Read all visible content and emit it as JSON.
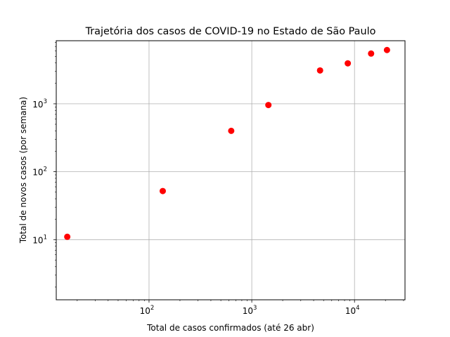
{
  "chart_data": {
    "type": "scatter",
    "title": "Trajetória dos casos de COVID-19 no Estado de São Paulo",
    "xlabel": "Total de casos confirmados (até 26 abr)",
    "ylabel": "Total de novos casos (por semana)",
    "xscale": "log",
    "yscale": "log",
    "xlim": [
      12.5,
      31000
    ],
    "ylim": [
      1.3,
      8500
    ],
    "grid": true,
    "marker_color": "#ff0000",
    "x_ticks": [
      {
        "value": 100,
        "label": "10",
        "exp": "2"
      },
      {
        "value": 1000,
        "label": "10",
        "exp": "3"
      },
      {
        "value": 10000,
        "label": "10",
        "exp": "4"
      }
    ],
    "y_ticks": [
      {
        "value": 10,
        "label": "10",
        "exp": "1"
      },
      {
        "value": 100,
        "label": "10",
        "exp": "2"
      },
      {
        "value": 1000,
        "label": "10",
        "exp": "3"
      }
    ],
    "points": [
      {
        "x": 16,
        "y": 11
      },
      {
        "x": 136,
        "y": 52
      },
      {
        "x": 631,
        "y": 400
      },
      {
        "x": 1451,
        "y": 960
      },
      {
        "x": 4620,
        "y": 3100
      },
      {
        "x": 8600,
        "y": 3950
      },
      {
        "x": 14500,
        "y": 5500
      },
      {
        "x": 20700,
        "y": 6200
      }
    ]
  }
}
